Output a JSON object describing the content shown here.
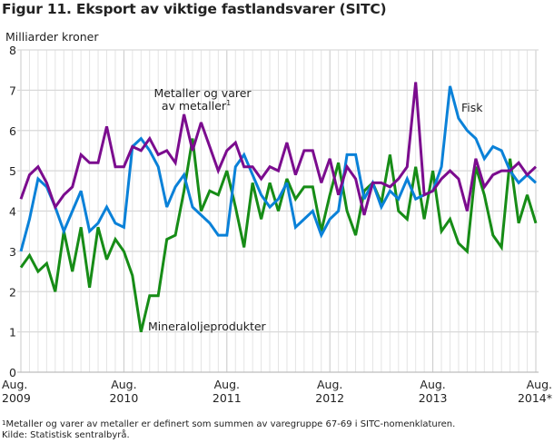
{
  "chart_data": {
    "type": "line",
    "title": "Figur 11. Eksport av viktige fastlandsvarer (SITC)",
    "ylabel": "Milliarder kroner",
    "xlabel": "",
    "ylim": [
      0,
      8
    ],
    "yticks": [
      "0",
      "1",
      "2",
      "3",
      "4",
      "5",
      "6",
      "7",
      "8"
    ],
    "xticks": [
      {
        "month_index": 0,
        "line1": "Aug.",
        "line2": "2009"
      },
      {
        "month_index": 12,
        "line1": "Aug.",
        "line2": "2010"
      },
      {
        "month_index": 24,
        "line1": "Aug.",
        "line2": "2011"
      },
      {
        "month_index": 36,
        "line1": "Aug.",
        "line2": "2012"
      },
      {
        "month_index": 48,
        "line1": "Aug.",
        "line2": "2013"
      },
      {
        "month_index": 60,
        "line1": "Aug.",
        "line2": "2014*"
      }
    ],
    "x_start": "Aug. 2009",
    "x_months": 61,
    "grid": true,
    "series": [
      {
        "name": "Metaller og varer av metaller",
        "label_line1": "Metaller og varer",
        "label_line2": "av metaller",
        "label_sup": "1",
        "color": "#7b0c8e",
        "values": [
          4.3,
          4.9,
          5.1,
          4.7,
          4.1,
          4.4,
          4.6,
          5.4,
          5.2,
          5.2,
          6.1,
          5.1,
          5.1,
          5.6,
          5.5,
          5.8,
          5.4,
          5.5,
          5.2,
          6.4,
          5.5,
          6.2,
          5.6,
          5.0,
          5.5,
          5.7,
          5.1,
          5.1,
          4.8,
          5.1,
          5.0,
          5.7,
          4.9,
          5.5,
          5.5,
          4.7,
          5.3,
          4.4,
          5.1,
          4.8,
          3.9,
          4.7,
          4.7,
          4.6,
          4.8,
          5.1,
          7.2,
          4.4,
          4.5,
          4.8,
          5.0,
          4.8,
          4.0,
          5.3,
          4.6,
          4.9,
          5.0,
          5.0,
          5.2,
          4.9,
          5.1
        ]
      },
      {
        "name": "Fisk",
        "label_line1": "Fisk",
        "color": "#0a81d8",
        "values": [
          3.0,
          3.8,
          4.8,
          4.6,
          4.1,
          3.5,
          4.0,
          4.5,
          3.5,
          3.7,
          4.1,
          3.7,
          3.6,
          5.6,
          5.8,
          5.5,
          5.1,
          4.1,
          4.6,
          4.9,
          4.1,
          3.9,
          3.7,
          3.4,
          3.4,
          5.1,
          5.4,
          4.9,
          4.4,
          4.1,
          4.3,
          4.7,
          3.6,
          3.8,
          4.0,
          3.4,
          3.8,
          4.0,
          5.4,
          5.4,
          4.3,
          4.7,
          4.1,
          4.5,
          4.3,
          4.8,
          4.3,
          4.4,
          4.5,
          5.1,
          7.1,
          6.3,
          6.0,
          5.8,
          5.3,
          5.6,
          5.5,
          5.0,
          4.7,
          4.9,
          4.7
        ]
      },
      {
        "name": "Mineraloljeprodukter",
        "label_line1": "Mineraloljeprodukter",
        "color": "#168c16",
        "values": [
          2.6,
          2.9,
          2.5,
          2.7,
          2.0,
          3.5,
          2.5,
          3.6,
          2.1,
          3.6,
          2.8,
          3.3,
          3.0,
          2.4,
          1.0,
          1.9,
          1.9,
          3.3,
          3.4,
          4.5,
          5.8,
          4.0,
          4.5,
          4.4,
          5.0,
          4.1,
          3.1,
          4.7,
          3.8,
          4.7,
          4.0,
          4.8,
          4.3,
          4.6,
          4.6,
          3.5,
          4.4,
          5.2,
          4.0,
          3.4,
          4.5,
          4.7,
          4.2,
          5.4,
          4.0,
          3.8,
          5.1,
          3.8,
          5.0,
          3.5,
          3.8,
          3.2,
          3.0,
          5.1,
          4.4,
          3.4,
          3.1,
          5.3,
          3.7,
          4.4,
          3.7
        ]
      }
    ]
  },
  "footnotes": {
    "note_sup": "1",
    "note": "Metaller og varer av metaller er definert som summen av varegruppe 67-69 i SITC-nomenklaturen.",
    "source": "Kilde: Statistisk sentralbyrå."
  }
}
